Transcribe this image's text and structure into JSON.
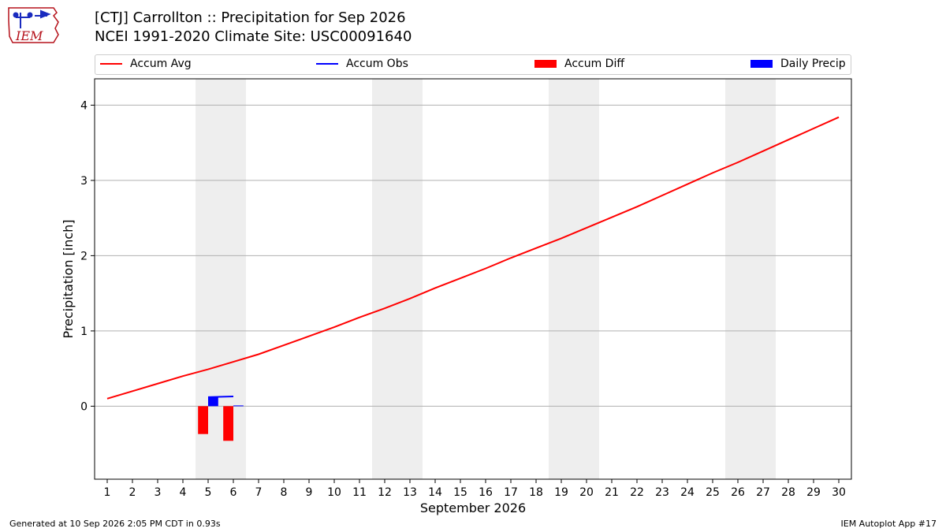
{
  "header": {
    "title_line1": "[CTJ] Carrollton :: Precipitation for Sep 2026",
    "title_line2": "NCEI 1991-2020 Climate Site: USC00091640",
    "logo_text": "IEM"
  },
  "legend": {
    "items": [
      {
        "label": "Accum Avg",
        "color": "#ff0000",
        "kind": "line"
      },
      {
        "label": "Accum Obs",
        "color": "#0000ff",
        "kind": "line"
      },
      {
        "label": "Accum Diff",
        "color": "#ff0000",
        "kind": "box"
      },
      {
        "label": "Daily Precip",
        "color": "#0000ff",
        "kind": "box"
      }
    ]
  },
  "footer": {
    "left": "Generated at 10 Sep 2026 2:05 PM CDT in 0.93s",
    "right": "IEM Autoplot App #17"
  },
  "chart_data": {
    "type": "line",
    "xlabel": "September 2026",
    "ylabel": "Precipitation [inch]",
    "xlim": [
      0.5,
      30.5
    ],
    "ylim": [
      -0.97,
      4.35
    ],
    "yticks": [
      0,
      1,
      2,
      3,
      4
    ],
    "xticks": [
      1,
      2,
      3,
      4,
      5,
      6,
      7,
      8,
      9,
      10,
      11,
      12,
      13,
      14,
      15,
      16,
      17,
      18,
      19,
      20,
      21,
      22,
      23,
      24,
      25,
      26,
      27,
      28,
      29,
      30
    ],
    "weekend_shading": [
      [
        5,
        6
      ],
      [
        12,
        13
      ],
      [
        19,
        20
      ],
      [
        26,
        27
      ]
    ],
    "grid": "horizontal",
    "series": [
      {
        "name": "Accum Avg",
        "kind": "line",
        "color": "#ff0000",
        "x": [
          1,
          2,
          3,
          4,
          5,
          6,
          7,
          8,
          9,
          10,
          11,
          12,
          13,
          14,
          15,
          16,
          17,
          18,
          19,
          20,
          21,
          22,
          23,
          24,
          25,
          26,
          27,
          28,
          29,
          30
        ],
        "values": [
          0.1,
          0.2,
          0.3,
          0.4,
          0.49,
          0.59,
          0.69,
          0.81,
          0.93,
          1.05,
          1.18,
          1.3,
          1.43,
          1.57,
          1.7,
          1.83,
          1.97,
          2.1,
          2.23,
          2.37,
          2.51,
          2.65,
          2.8,
          2.95,
          3.1,
          3.24,
          3.39,
          3.54,
          3.69,
          3.84
        ]
      },
      {
        "name": "Accum Obs",
        "kind": "line",
        "color": "#0000ff",
        "x": [
          5,
          6
        ],
        "values": [
          0.12,
          0.13
        ]
      },
      {
        "name": "Accum Diff",
        "kind": "bar",
        "color": "#ff0000",
        "x": [
          4.8,
          5.8
        ],
        "values": [
          -0.37,
          -0.46
        ]
      },
      {
        "name": "Daily Precip",
        "kind": "bar",
        "color": "#0000ff",
        "x": [
          5.2,
          6.2
        ],
        "values": [
          0.12,
          0.01
        ]
      }
    ]
  }
}
